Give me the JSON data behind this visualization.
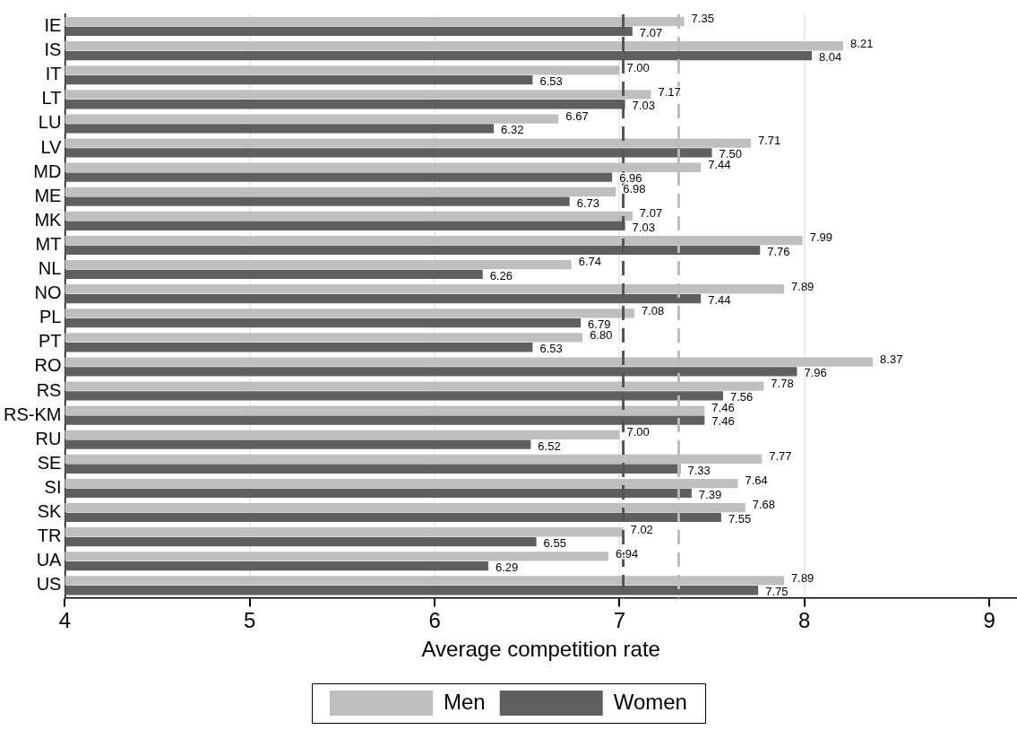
{
  "chart_data": {
    "type": "bar",
    "orientation": "horizontal",
    "xlabel": "Average competition rate",
    "categories": [
      "IE",
      "IS",
      "IT",
      "LT",
      "LU",
      "LV",
      "MD",
      "ME",
      "MK",
      "MT",
      "NL",
      "NO",
      "PL",
      "PT",
      "RO",
      "RS",
      "RS-KM",
      "RU",
      "SE",
      "SI",
      "SK",
      "TR",
      "UA",
      "US"
    ],
    "series": [
      {
        "name": "Men",
        "color": "#bfbfbf",
        "values": [
          7.35,
          8.21,
          7.0,
          7.17,
          6.67,
          7.71,
          7.44,
          6.98,
          7.07,
          7.99,
          6.74,
          7.89,
          7.08,
          6.8,
          8.37,
          7.78,
          7.46,
          7.0,
          7.77,
          7.64,
          7.68,
          7.02,
          6.94,
          7.89
        ],
        "value_labels": [
          "7.35",
          "8.21",
          "7.00",
          "7.17",
          "6.67",
          "7.71",
          "7.44",
          "6.98",
          "7.07",
          "7.99",
          "6.74",
          "7.89",
          "7.08",
          "6.80",
          "8.37",
          "7.78",
          "7.46",
          "7.00",
          "7.77",
          "7.64",
          "7.68",
          "7.02",
          "6.94",
          "7.89"
        ]
      },
      {
        "name": "Women",
        "color": "#5f5f5f",
        "values": [
          7.07,
          8.04,
          6.53,
          7.03,
          6.32,
          7.5,
          6.96,
          6.73,
          7.03,
          7.76,
          6.26,
          7.44,
          6.79,
          6.53,
          7.96,
          7.56,
          7.46,
          6.52,
          7.33,
          7.39,
          7.55,
          6.55,
          6.29,
          7.75
        ],
        "value_labels": [
          "7.07",
          "8.04",
          "6.53",
          "7.03",
          "6.32",
          "7.50",
          "6.96",
          "6.73",
          "7.03",
          "7.76",
          "6.26",
          "7.44",
          "6.79",
          "6.53",
          "7.96",
          "7.56",
          "7.46",
          "6.52",
          "7.33",
          "7.39",
          "7.55",
          "6.55",
          "6.29",
          "7.75"
        ]
      }
    ],
    "xlim": [
      4,
      9.15
    ],
    "xticks": [
      4,
      5,
      6,
      7,
      8,
      9
    ],
    "ref_lines": [
      {
        "axis": "x",
        "value": 7.02,
        "color": "#555555",
        "line_style": "dashed"
      },
      {
        "axis": "x",
        "value": 7.32,
        "color": "#bbbbbb",
        "line_style": "dashed"
      }
    ],
    "grid": "x",
    "legend": "bottom"
  }
}
